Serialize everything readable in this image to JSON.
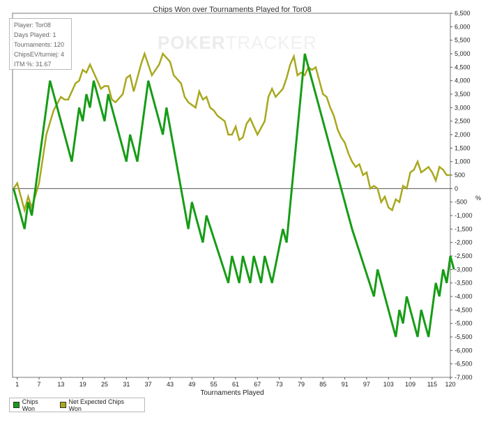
{
  "info": {
    "player": "Player: Tor08",
    "days": "Days Played: 1",
    "tournaments": "Tournaments: 120",
    "chipsev": "ChipsEV/turniej: 4",
    "itm": "ITM %: 31.67"
  },
  "watermark": {
    "poker": "POKER",
    "tracker": "TRACKER"
  },
  "colors": {
    "chips_won": "#169c16",
    "net_expected": "#a8a81e",
    "zero_line": "#555555"
  },
  "chart_data": {
    "type": "line",
    "title": "Chips Won over Tournaments Played for  Tor08",
    "xlabel": "Tournaments Played",
    "ylabel": "",
    "xlim": [
      0,
      120
    ],
    "ylim": [
      -7000,
      6500
    ],
    "x_ticks": [
      1,
      7,
      13,
      19,
      25,
      31,
      37,
      43,
      49,
      55,
      61,
      67,
      73,
      79,
      85,
      91,
      97,
      103,
      109,
      115,
      120
    ],
    "y_ticks": [
      -7000,
      -6500,
      -6000,
      -5500,
      -5000,
      -4500,
      -4000,
      -3500,
      -3000,
      -2500,
      -2000,
      -1500,
      -1000,
      -500,
      0,
      500,
      1000,
      1500,
      2000,
      2500,
      3000,
      3500,
      4000,
      4500,
      5000,
      5500,
      6000,
      6500
    ],
    "y_tick_labels": [
      "-7,000",
      "-6,500",
      "-6,000",
      "-5,500",
      "-5,000",
      "-4,500",
      "-4,000",
      "-3,500",
      "-3,000",
      "-2,500",
      "-2,000",
      "-1,500",
      "-1,000",
      "-500",
      "0",
      "500",
      "1,000",
      "1,500",
      "2,000",
      "2,500",
      "3,000",
      "3,500",
      "4,000",
      "4,500",
      "5,000",
      "5,500",
      "6,000",
      "6,500"
    ],
    "y_unit_label": "%",
    "legend": "bottom-left",
    "series": [
      {
        "name": "Chips Won",
        "points": [
          [
            0,
            0
          ],
          [
            3,
            -1500
          ],
          [
            4,
            -500
          ],
          [
            5,
            -1000
          ],
          [
            10,
            4000
          ],
          [
            16,
            1000
          ],
          [
            18,
            3000
          ],
          [
            19,
            2500
          ],
          [
            20,
            3500
          ],
          [
            21,
            3000
          ],
          [
            22,
            4000
          ],
          [
            25,
            2500
          ],
          [
            26,
            3500
          ],
          [
            31,
            1000
          ],
          [
            32,
            2000
          ],
          [
            34,
            1000
          ],
          [
            37,
            4000
          ],
          [
            41,
            2000
          ],
          [
            42,
            3000
          ],
          [
            48,
            -1500
          ],
          [
            49,
            -500
          ],
          [
            52,
            -2000
          ],
          [
            53,
            -1000
          ],
          [
            59,
            -3500
          ],
          [
            60,
            -2500
          ],
          [
            62,
            -3500
          ],
          [
            63,
            -2500
          ],
          [
            65,
            -3500
          ],
          [
            66,
            -2500
          ],
          [
            68,
            -3500
          ],
          [
            69,
            -2500
          ],
          [
            71,
            -3500
          ],
          [
            74,
            -1500
          ],
          [
            75,
            -2000
          ],
          [
            80,
            5000
          ],
          [
            93,
            -1500
          ],
          [
            99,
            -4000
          ],
          [
            100,
            -3000
          ],
          [
            105,
            -5500
          ],
          [
            106,
            -4500
          ],
          [
            107,
            -5000
          ],
          [
            108,
            -4000
          ],
          [
            111,
            -5500
          ],
          [
            112,
            -4500
          ],
          [
            114,
            -5500
          ],
          [
            116,
            -3500
          ],
          [
            117,
            -4000
          ],
          [
            118,
            -3000
          ],
          [
            119,
            -3500
          ],
          [
            120,
            -2500
          ],
          [
            121,
            -3000
          ]
        ]
      },
      {
        "name": "Net Expected Chips Won",
        "points": [
          [
            0,
            0
          ],
          [
            1,
            200
          ],
          [
            3,
            -800
          ],
          [
            4,
            -300
          ],
          [
            5,
            -700
          ],
          [
            7,
            200
          ],
          [
            9,
            2000
          ],
          [
            11,
            2900
          ],
          [
            13,
            3400
          ],
          [
            14,
            3300
          ],
          [
            15,
            3300
          ],
          [
            17,
            3900
          ],
          [
            18,
            4000
          ],
          [
            19,
            4400
          ],
          [
            20,
            4300
          ],
          [
            21,
            4600
          ],
          [
            22,
            4300
          ],
          [
            23,
            4000
          ],
          [
            24,
            3700
          ],
          [
            25,
            3800
          ],
          [
            26,
            3800
          ],
          [
            27,
            3300
          ],
          [
            28,
            3200
          ],
          [
            30,
            3500
          ],
          [
            31,
            4100
          ],
          [
            32,
            4200
          ],
          [
            33,
            3600
          ],
          [
            34,
            4100
          ],
          [
            35,
            4600
          ],
          [
            36,
            5000
          ],
          [
            38,
            4200
          ],
          [
            40,
            4600
          ],
          [
            41,
            5000
          ],
          [
            43,
            4700
          ],
          [
            44,
            4200
          ],
          [
            46,
            3900
          ],
          [
            47,
            3400
          ],
          [
            48,
            3200
          ],
          [
            50,
            3000
          ],
          [
            51,
            3600
          ],
          [
            52,
            3300
          ],
          [
            53,
            3400
          ],
          [
            54,
            3000
          ],
          [
            55,
            2900
          ],
          [
            56,
            2700
          ],
          [
            58,
            2500
          ],
          [
            59,
            2000
          ],
          [
            60,
            2000
          ],
          [
            61,
            2300
          ],
          [
            62,
            1800
          ],
          [
            63,
            1900
          ],
          [
            64,
            2400
          ],
          [
            65,
            2600
          ],
          [
            66,
            2300
          ],
          [
            67,
            2000
          ],
          [
            69,
            2500
          ],
          [
            70,
            3400
          ],
          [
            71,
            3700
          ],
          [
            72,
            3400
          ],
          [
            74,
            3700
          ],
          [
            75,
            4100
          ],
          [
            76,
            4600
          ],
          [
            77,
            4900
          ],
          [
            78,
            4200
          ],
          [
            79,
            4300
          ],
          [
            80,
            4200
          ],
          [
            81,
            4500
          ],
          [
            82,
            4400
          ],
          [
            83,
            4500
          ],
          [
            84,
            4000
          ],
          [
            85,
            3500
          ],
          [
            86,
            3400
          ],
          [
            87,
            3000
          ],
          [
            88,
            2700
          ],
          [
            89,
            2200
          ],
          [
            90,
            1900
          ],
          [
            91,
            1700
          ],
          [
            92,
            1300
          ],
          [
            93,
            1000
          ],
          [
            94,
            800
          ],
          [
            95,
            900
          ],
          [
            96,
            500
          ],
          [
            97,
            600
          ],
          [
            98,
            0
          ],
          [
            99,
            100
          ],
          [
            100,
            0
          ],
          [
            101,
            -500
          ],
          [
            102,
            -300
          ],
          [
            103,
            -700
          ],
          [
            104,
            -800
          ],
          [
            105,
            -400
          ],
          [
            106,
            -500
          ],
          [
            107,
            100
          ],
          [
            108,
            0
          ],
          [
            109,
            600
          ],
          [
            110,
            700
          ],
          [
            111,
            1000
          ],
          [
            112,
            600
          ],
          [
            113,
            700
          ],
          [
            114,
            800
          ],
          [
            115,
            600
          ],
          [
            116,
            300
          ],
          [
            117,
            800
          ],
          [
            118,
            700
          ],
          [
            119,
            500
          ],
          [
            120,
            500
          ]
        ]
      }
    ]
  }
}
